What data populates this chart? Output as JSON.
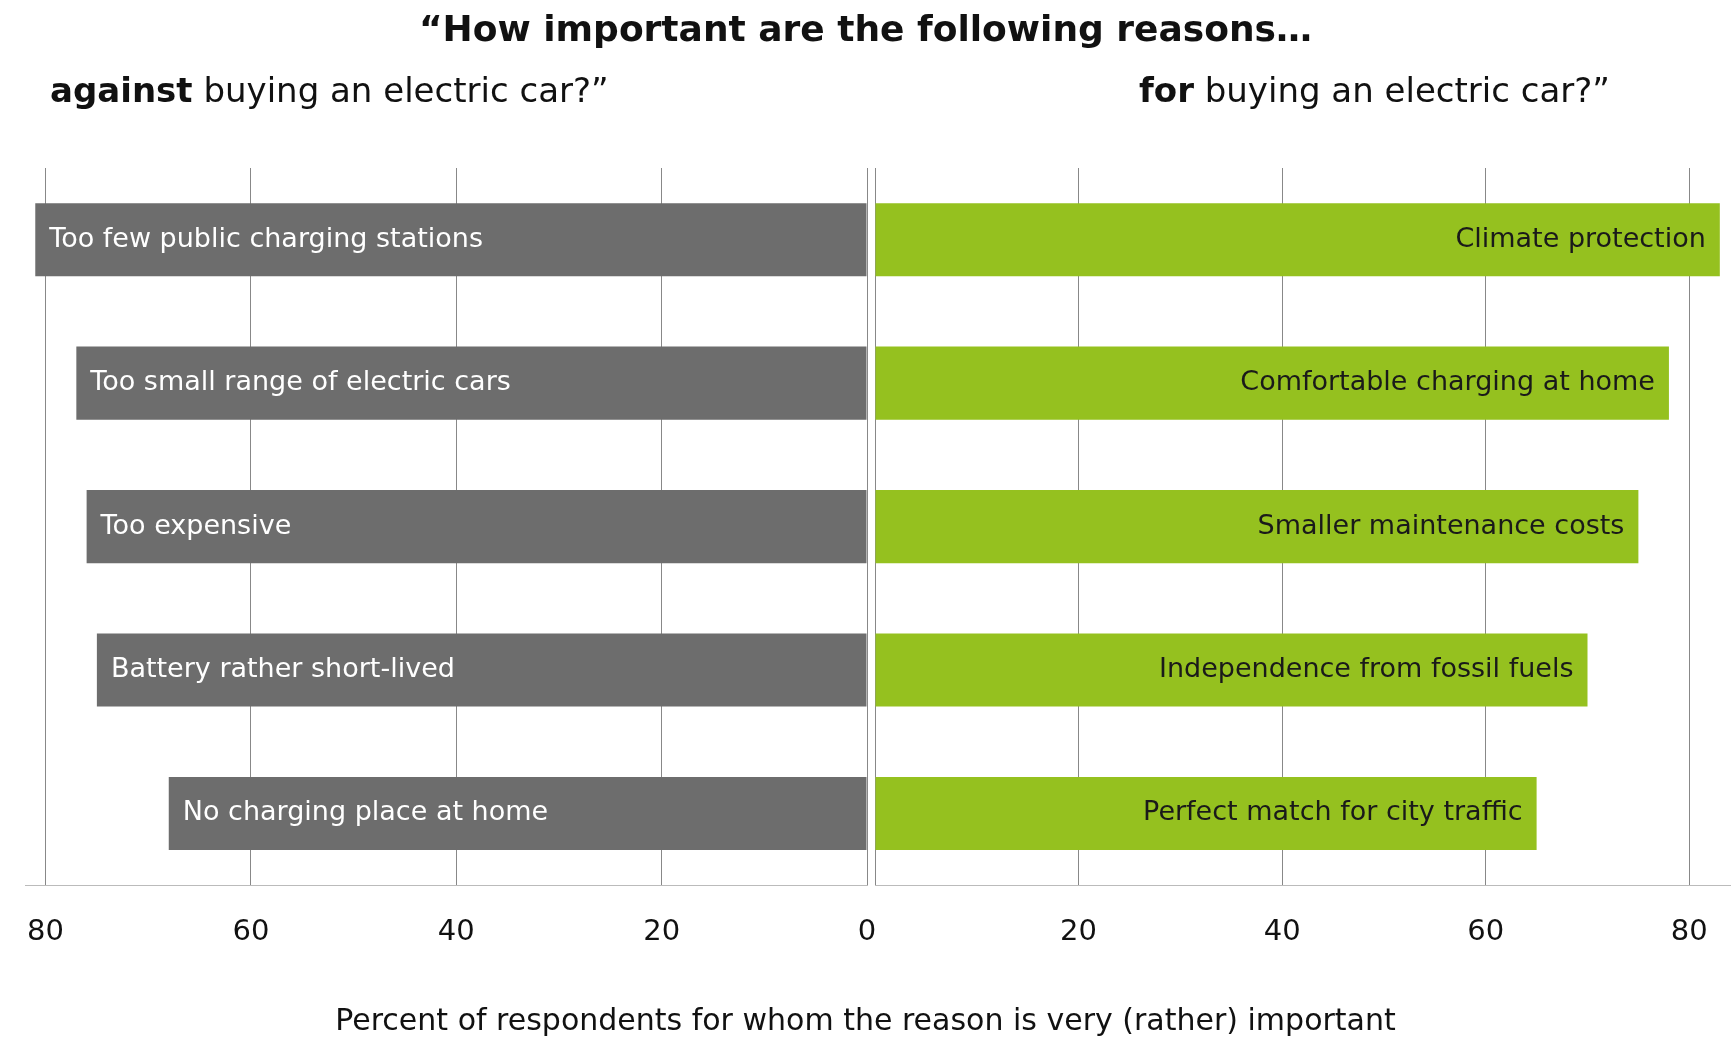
{
  "chart_data": [
    {
      "type": "bar",
      "orientation": "horizontal",
      "title": "“How important are the following reasons…",
      "subtitle": "against buying an electric car?”",
      "xlabel": "Percent of respondents for whom the reason is very (rather) important",
      "categories": [
        "Too few public charging stations",
        "Too small range of electric cars",
        "Too expensive",
        "Battery rather short-lived",
        "No charging place at home"
      ],
      "series": [
        {
          "color": "#6d6d6d",
          "values": [
            81,
            77,
            76,
            75,
            68
          ]
        }
      ],
      "xlim": [
        82,
        0
      ],
      "xticks": [
        80,
        60,
        40,
        20,
        0
      ],
      "grid": "x",
      "legend": false,
      "tick_labels": "x"
    },
    {
      "type": "bar",
      "orientation": "horizontal",
      "subtitle": "for buying an electric car?”",
      "categories": [
        "Climate protection",
        "Comfortable charging at home",
        "Smaller maintenance costs",
        "Independence from fossil fuels",
        "Perfect match for city traffic"
      ],
      "series": [
        {
          "color": "#95c11f",
          "values": [
            83,
            78,
            75,
            70,
            65
          ]
        }
      ],
      "xlim": [
        0,
        84
      ],
      "xticks": [
        {
          "value": 0,
          "label": null
        },
        20,
        40,
        60,
        80
      ],
      "grid": "x",
      "legend": false,
      "tick_labels": "x"
    }
  ]
}
